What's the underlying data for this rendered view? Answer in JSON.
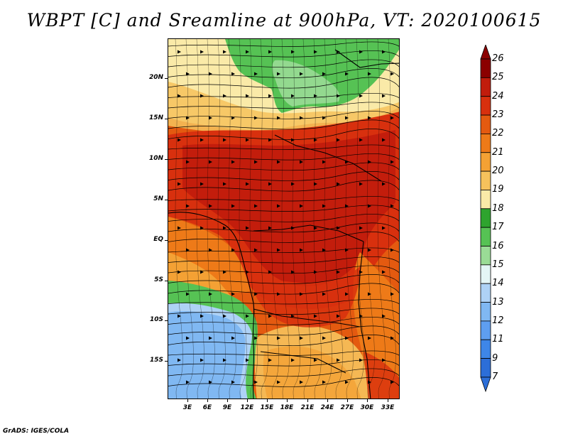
{
  "title": "WBPT [C] and Sreamline at 900hPa, VT: 2020100615",
  "lat_labels": [
    "20N",
    "15N",
    "10N",
    "5N",
    "EQ",
    "5S",
    "10S",
    "15S"
  ],
  "lon_labels": [
    "3E",
    "6E",
    "9E",
    "12E",
    "15E",
    "18E",
    "21E",
    "24E",
    "27E",
    "30E",
    "33E"
  ],
  "colorbar": {
    "labels": [
      "26",
      "25",
      "24",
      "23",
      "22",
      "21",
      "20",
      "19",
      "18",
      "17",
      "16",
      "15",
      "14",
      "13",
      "12",
      "11",
      "9",
      "7"
    ],
    "colors": [
      "#8b0000",
      "#c11c0c",
      "#d8300e",
      "#e45a10",
      "#ee7a18",
      "#f4a134",
      "#f6c25c",
      "#faeaa8",
      "#2ea42e",
      "#56c254",
      "#9adc96",
      "#e4f6f6",
      "#aed2f6",
      "#80b8f2",
      "#5e9ef0",
      "#3e86e8",
      "#2c6ed8"
    ],
    "upper_triangle_color": "#8b0000",
    "lower_triangle_color": "#2c6ed8"
  },
  "map_colors": {
    "deep_red": "#c11c0c",
    "red": "#d8300e",
    "red_orange": "#e45a10",
    "orange": "#ee7a18",
    "light_orange": "#f4a134",
    "peach": "#f6c25c",
    "cream": "#faeaa8",
    "green": "#56c254",
    "light_green": "#9adc96",
    "blue": "#80b8f2",
    "light_blue": "#aed2f6"
  },
  "credit": "GrADS: IGES/COLA"
}
